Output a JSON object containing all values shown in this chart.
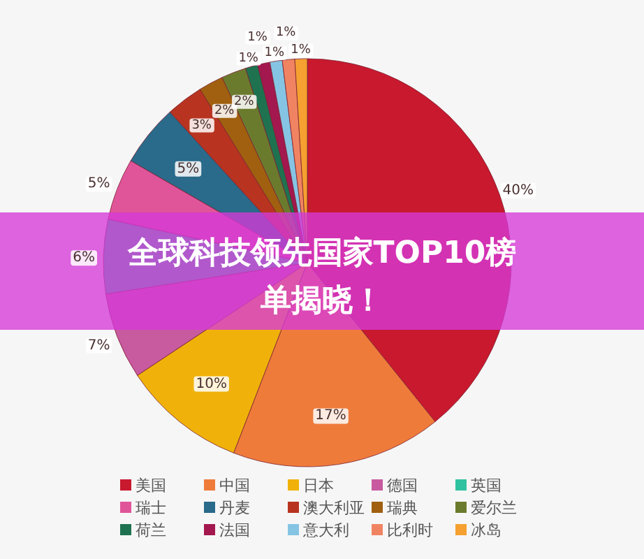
{
  "chart_data": {
    "type": "pie",
    "title": "全球科技领先国家TOP10榜单揭晓！",
    "categories": [
      "美国",
      "中国",
      "日本",
      "德国",
      "英国",
      "瑞士",
      "丹麦",
      "澳大利亚",
      "瑞典",
      "爱尔兰",
      "荷兰",
      "法国",
      "意大利",
      "比利时",
      "冰岛"
    ],
    "values": [
      40,
      17,
      10,
      7,
      6,
      5,
      5,
      3,
      2,
      2,
      1,
      1,
      1,
      1,
      1
    ],
    "colors": [
      "#c8192e",
      "#ef7b3b",
      "#f0b20a",
      "#c85aa0",
      "#2fc2a0",
      "#e0559a",
      "#2a6a8a",
      "#b83420",
      "#a0600f",
      "#6b7b2e",
      "#1f7250",
      "#a3184e",
      "#86c4e4",
      "#f08462",
      "#f5a030"
    ],
    "value_labels": [
      "40%",
      "17%",
      "10%",
      "7%",
      "6%",
      "5%",
      "5%",
      "3%",
      "2%",
      "2%",
      "1%",
      "1%",
      "1%",
      "1%",
      "1%"
    ],
    "legend": "bottom"
  }
}
